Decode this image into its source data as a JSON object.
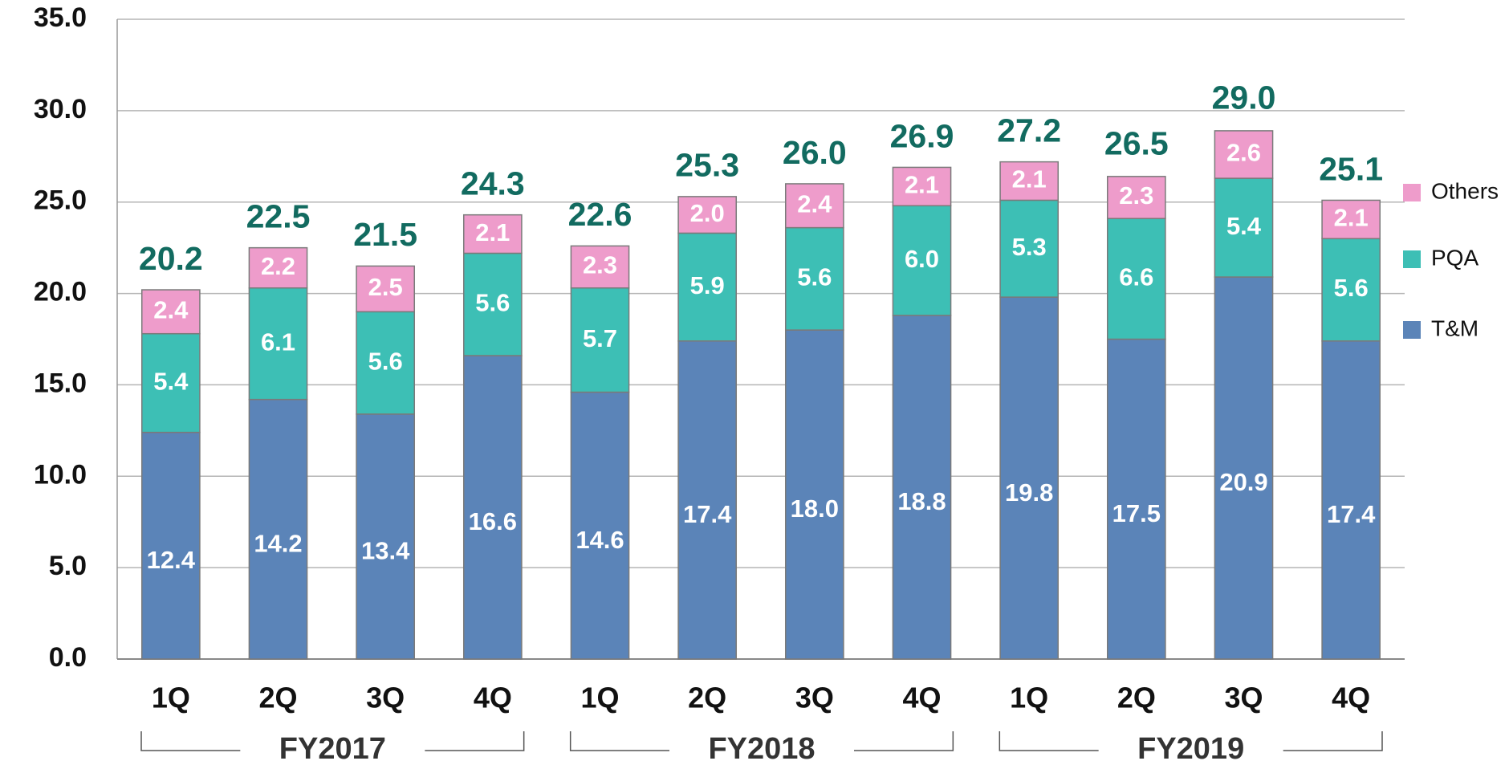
{
  "chart_data": {
    "type": "stacked_bar",
    "categories": [
      "1Q",
      "2Q",
      "3Q",
      "4Q",
      "1Q",
      "2Q",
      "3Q",
      "4Q",
      "1Q",
      "2Q",
      "3Q",
      "4Q"
    ],
    "groups": [
      "FY2017",
      "FY2018",
      "FY2019"
    ],
    "series": [
      {
        "name": "T&M",
        "color": "#5b84b8",
        "values": [
          12.4,
          14.2,
          13.4,
          16.6,
          14.6,
          17.4,
          18.0,
          18.8,
          19.8,
          17.5,
          20.9,
          17.4
        ],
        "value_labels": [
          "12.4",
          "14.2",
          "13.4",
          "16.6",
          "14.6",
          "17.4",
          "18.0",
          "18.8",
          "19.8",
          "17.5",
          "20.9",
          "17.4"
        ]
      },
      {
        "name": "PQA",
        "color": "#3dbfb5",
        "values": [
          5.4,
          6.1,
          5.6,
          5.6,
          5.7,
          5.9,
          5.6,
          6.0,
          5.3,
          6.6,
          5.4,
          5.6
        ],
        "value_labels": [
          "5.4",
          "6.1",
          "5.6",
          "5.6",
          "5.7",
          "5.9",
          "5.6",
          "6.0",
          "5.3",
          "6.6",
          "5.4",
          "5.6"
        ]
      },
      {
        "name": "Others",
        "color": "#ee9ccb",
        "values": [
          2.4,
          2.2,
          2.5,
          2.1,
          2.3,
          2.0,
          2.4,
          2.1,
          2.1,
          2.3,
          2.6,
          2.1
        ],
        "value_labels": [
          "2.4",
          "2.2",
          "2.5",
          "2.1",
          "2.3",
          "2.0",
          "2.4",
          "2.1",
          "2.1",
          "2.3",
          "2.6",
          "2.1"
        ]
      }
    ],
    "totals": {
      "values": [
        20.2,
        22.5,
        21.5,
        24.3,
        22.6,
        25.3,
        26.0,
        26.9,
        27.2,
        26.5,
        29.0,
        25.1
      ],
      "value_labels": [
        "20.2",
        "22.5",
        "21.5",
        "24.3",
        "22.6",
        "25.3",
        "26.0",
        "26.9",
        "27.2",
        "26.5",
        "29.0",
        "25.1"
      ]
    },
    "ylim": [
      0,
      35
    ],
    "yticks": [
      {
        "value": 0,
        "label": "0.0"
      },
      {
        "value": 5,
        "label": "5.0"
      },
      {
        "value": 10,
        "label": "10.0"
      },
      {
        "value": 15,
        "label": "15.0"
      },
      {
        "value": 20,
        "label": "20.0"
      },
      {
        "value": 25,
        "label": "25.0"
      },
      {
        "value": 30,
        "label": "30.0"
      },
      {
        "value": 35,
        "label": "35.0"
      }
    ],
    "grid": true,
    "legend": "right"
  }
}
